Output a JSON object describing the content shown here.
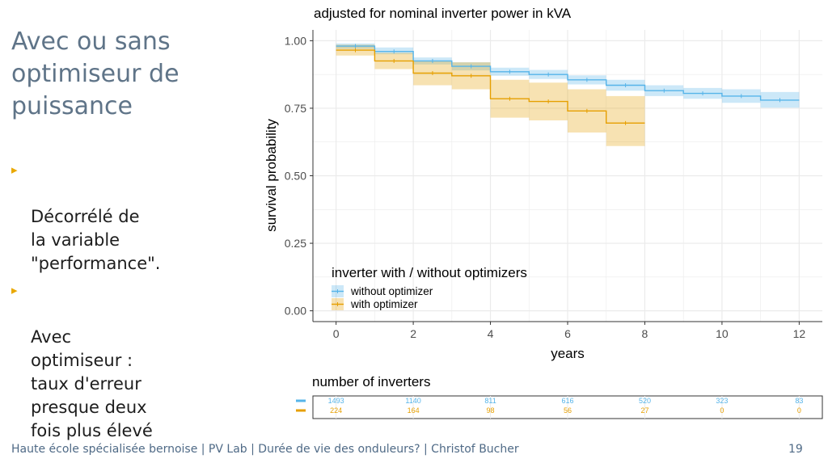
{
  "slide": {
    "title": "Avec ou sans optimiseur de puissance",
    "bullets": [
      "Décorrélé de\nla variable\n\"performance\".",
      "Avec\noptimiseur :\ntaux d'erreur\npresque deux\nfois plus élevé"
    ],
    "bullet_marker": "▸",
    "footer": "Haute école spécialisée bernoise | PV Lab | Durée de vie des onduleurs? | Christof Bucher",
    "page_number": "19"
  },
  "colors": {
    "without": "#56b4e9",
    "with": "#e69f00",
    "grid": "#ebebeb",
    "axis": "#333333",
    "bullet": "#e9a800",
    "title": "#5f7488"
  },
  "chart_data": [
    {
      "type": "line",
      "subtype": "survival-step",
      "title": "adjusted for nominal inverter power in kVA",
      "xlabel": "years",
      "ylabel": "survival probability",
      "xlim": [
        -0.6,
        12.6
      ],
      "ylim": [
        -0.04,
        1.04
      ],
      "xticks": [
        0,
        2,
        4,
        6,
        8,
        10,
        12
      ],
      "yticks": [
        0.0,
        0.25,
        0.5,
        0.75,
        1.0
      ],
      "ytick_labels": [
        "0.00",
        "0.25",
        "0.50",
        "0.75",
        "1.00"
      ],
      "grid": true,
      "legend": {
        "title": "inverter with / without optimizers",
        "position": "bottom-left"
      },
      "series": [
        {
          "name": "without optimizer",
          "color_key": "without",
          "x": [
            0,
            1,
            2,
            3,
            4,
            5,
            6,
            7,
            8,
            9,
            10,
            11,
            12
          ],
          "y": [
            0.98,
            0.96,
            0.925,
            0.905,
            0.885,
            0.875,
            0.855,
            0.835,
            0.815,
            0.805,
            0.795,
            0.78,
            0.78
          ],
          "lower": [
            0.97,
            0.95,
            0.912,
            0.89,
            0.87,
            0.858,
            0.838,
            0.815,
            0.795,
            0.785,
            0.77,
            0.752,
            0.752
          ],
          "upper": [
            0.99,
            0.975,
            0.938,
            0.92,
            0.9,
            0.892,
            0.872,
            0.855,
            0.835,
            0.825,
            0.82,
            0.81,
            0.81
          ]
        },
        {
          "name": "with optimizer",
          "color_key": "with",
          "x": [
            0,
            1,
            2,
            3,
            4,
            5,
            6,
            7,
            8
          ],
          "y": [
            0.965,
            0.925,
            0.88,
            0.87,
            0.785,
            0.775,
            0.74,
            0.695,
            0.695
          ],
          "lower": [
            0.945,
            0.895,
            0.835,
            0.82,
            0.715,
            0.705,
            0.66,
            0.61,
            0.61
          ],
          "upper": [
            0.985,
            0.955,
            0.925,
            0.92,
            0.855,
            0.845,
            0.82,
            0.795,
            0.795
          ]
        }
      ]
    },
    {
      "type": "table",
      "title": "number of inverters",
      "columns": [
        0,
        2,
        4,
        6,
        8,
        10,
        12
      ],
      "rows": [
        {
          "color_key": "without",
          "values": [
            1493,
            1140,
            811,
            616,
            520,
            323,
            83
          ]
        },
        {
          "color_key": "with",
          "values": [
            224,
            164,
            98,
            56,
            27,
            0,
            0
          ]
        }
      ]
    }
  ]
}
